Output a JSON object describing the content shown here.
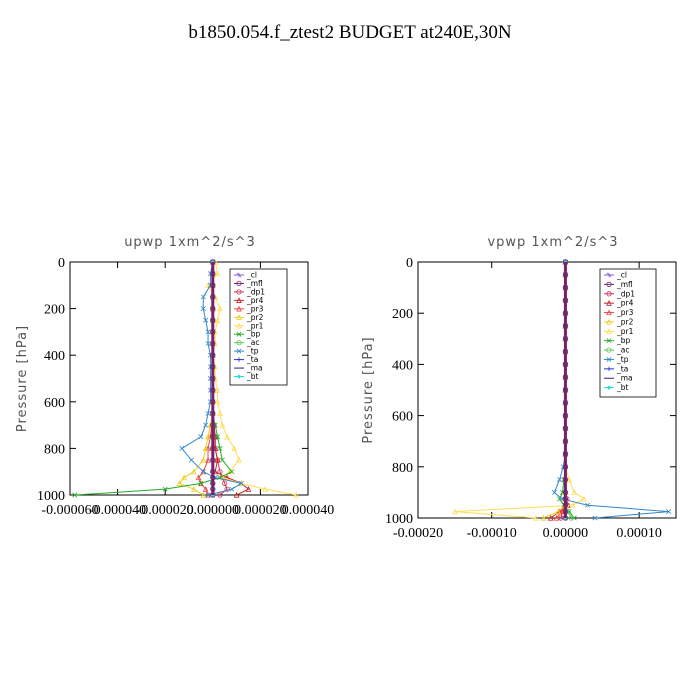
{
  "title": "b1850.054.f_ztest2  BUDGET at240E,30N",
  "legend_names": [
    "_cl",
    "_mfl",
    "_dp1",
    "_pr4",
    "_pr3",
    "_pr2",
    "_pr1",
    "_bp",
    "_ac",
    "_tp",
    "_ta",
    "_ma",
    "_bt"
  ],
  "colors": {
    "_cl": "#8855cc",
    "_mfl": "#7a1f6e",
    "_dp1": "#cc3355",
    "_pr4": "#cc2222",
    "_pr3": "#ee4444",
    "_pr2": "#eecc22",
    "_pr1": "#ffdd55",
    "_bp": "#22aa22",
    "_ac": "#55cc55",
    "_tp": "#3388cc",
    "_ta": "#2233cc",
    "_ma": "#222288",
    "_bt": "#22dddd"
  },
  "chart_data": [
    {
      "type": "line",
      "title": "upwp   1xm^2/s^3",
      "ylabel": "Pressure [hPa]",
      "xlim": [
        -6e-05,
        4e-05
      ],
      "ylim": [
        1000,
        0
      ],
      "x_tick_labels": [
        "-0.000060",
        "-0.000040",
        "-0.000020",
        "0.000000",
        "0.000020",
        "0.000040"
      ],
      "y_tick_labels": [
        "0",
        "200",
        "400",
        "600",
        "800",
        "1000"
      ],
      "legend": "top-right",
      "pressure": [
        0,
        50,
        100,
        150,
        200,
        250,
        300,
        350,
        400,
        450,
        500,
        550,
        600,
        650,
        700,
        750,
        800,
        850,
        900,
        925,
        950,
        975,
        1000
      ],
      "series": [
        {
          "name": "_cl",
          "values": [
            0,
            0,
            0,
            0,
            0,
            0,
            0,
            0,
            0,
            0,
            0,
            0,
            0,
            0,
            0,
            0,
            0,
            0,
            0,
            0,
            0,
            0,
            0
          ]
        },
        {
          "name": "_mfl",
          "values": [
            0,
            0,
            0,
            0,
            0,
            0,
            0,
            0,
            0,
            0,
            0,
            0,
            0,
            0,
            0,
            0,
            0,
            0,
            0,
            0,
            0,
            0,
            0
          ]
        },
        {
          "name": "_dp1",
          "values": [
            0,
            0,
            0,
            0,
            0,
            0,
            0,
            0,
            0,
            0,
            0,
            0,
            0,
            0,
            5e-07,
            1e-06,
            1e-06,
            2e-06,
            3e-06,
            4e-06,
            5e-06,
            6e-06,
            3e-06
          ]
        },
        {
          "name": "_pr4",
          "values": [
            0,
            0,
            0,
            0,
            0,
            0,
            0,
            0,
            0,
            0,
            0,
            0,
            0,
            0,
            5e-07,
            1e-06,
            1e-06,
            2e-06,
            1e-06,
            6e-06,
            1.2e-05,
            1.5e-05,
            1e-05
          ]
        },
        {
          "name": "_pr3",
          "values": [
            0,
            0,
            0,
            0,
            0,
            0,
            0,
            0,
            0,
            0,
            0,
            0,
            0,
            0,
            -5e-07,
            -1e-06,
            -2e-06,
            -2e-06,
            -4e-06,
            -6e-06,
            -5e-06,
            -3e-06,
            -2e-06
          ]
        },
        {
          "name": "_pr2",
          "values": [
            0,
            0,
            0,
            0,
            0,
            0,
            0,
            0,
            0,
            0,
            0,
            0,
            0,
            0,
            -1e-06,
            -2e-06,
            -3e-06,
            -4e-06,
            -8e-06,
            -1.2e-05,
            -1.4e-05,
            -8e-06,
            -4e-06
          ]
        },
        {
          "name": "_pr1",
          "values": [
            1e-06,
            2e-06,
            -2e-06,
            1e-06,
            3e-06,
            2e-06,
            1e-06,
            1e-06,
            0,
            1e-06,
            1e-06,
            2e-06,
            2e-06,
            3e-06,
            4e-06,
            6e-06,
            9e-06,
            1.1e-05,
            7e-06,
            4e-06,
            1.2e-05,
            2.2e-05,
            3.5e-05
          ]
        },
        {
          "name": "_bp",
          "values": [
            0,
            0,
            0,
            0,
            0,
            0,
            0,
            0,
            0,
            0,
            0,
            0,
            0,
            0,
            1e-06,
            2e-06,
            3e-06,
            4e-06,
            8e-06,
            3e-06,
            -5e-06,
            -2e-05,
            -5.8e-05
          ]
        },
        {
          "name": "_ac",
          "values": [
            0,
            0,
            0,
            0,
            0,
            0,
            0,
            0,
            0,
            0,
            0,
            0,
            0,
            0,
            0,
            0,
            0,
            0,
            0,
            0,
            0,
            0,
            0
          ]
        },
        {
          "name": "_tp",
          "values": [
            0,
            -1e-06,
            -1e-06,
            -4e-06,
            -4e-06,
            -3e-06,
            -2e-06,
            -2e-06,
            -1e-06,
            -1e-06,
            -1e-06,
            -1e-06,
            -1e-06,
            -2e-06,
            -3e-06,
            -5e-06,
            -1.3e-05,
            -9e-06,
            -4e-06,
            1e-06,
            1.2e-05,
            8e-06,
            -2e-06
          ]
        },
        {
          "name": "_ta",
          "values": [
            0,
            0,
            0,
            0,
            0,
            0,
            0,
            0,
            0,
            0,
            0,
            0,
            0,
            0,
            0,
            0,
            0,
            0,
            0,
            0,
            0,
            0,
            0
          ]
        },
        {
          "name": "_ma",
          "values": [
            0,
            0,
            0,
            0,
            0,
            0,
            0,
            0,
            0,
            0,
            0,
            0,
            0,
            0,
            0,
            0,
            0,
            0,
            0,
            0,
            0,
            0,
            0
          ]
        },
        {
          "name": "_bt",
          "values": [
            0,
            0,
            0,
            0,
            0,
            0,
            0,
            0,
            0,
            0,
            0,
            0,
            0,
            0,
            0,
            0,
            0,
            0,
            0,
            0,
            0,
            0,
            0
          ]
        }
      ]
    },
    {
      "type": "line",
      "title": "vpwp   1xm^2/s^3",
      "ylabel": "Pressure [hPa]",
      "xlim": [
        -0.0002,
        0.00015
      ],
      "ylim": [
        1000,
        0
      ],
      "x_tick_labels": [
        "-0.00020",
        "-0.00010",
        "0.00000",
        "0.00010"
      ],
      "y_tick_labels": [
        "0",
        "200",
        "400",
        "600",
        "800",
        "1000"
      ],
      "legend": "top-right",
      "pressure": [
        0,
        50,
        100,
        150,
        200,
        250,
        300,
        350,
        400,
        450,
        500,
        550,
        600,
        650,
        700,
        750,
        800,
        850,
        900,
        925,
        950,
        975,
        1000
      ],
      "series": [
        {
          "name": "_cl",
          "values": [
            0,
            0,
            0,
            0,
            0,
            0,
            0,
            0,
            0,
            0,
            0,
            0,
            0,
            0,
            0,
            0,
            0,
            0,
            0,
            0,
            0,
            0,
            0
          ]
        },
        {
          "name": "_mfl",
          "values": [
            0,
            0,
            0,
            0,
            0,
            0,
            0,
            0,
            0,
            0,
            0,
            0,
            0,
            0,
            0,
            0,
            0,
            0,
            0,
            0,
            0,
            0,
            0
          ]
        },
        {
          "name": "_dp1",
          "values": [
            0,
            0,
            0,
            0,
            0,
            0,
            0,
            0,
            0,
            0,
            0,
            0,
            0,
            0,
            0,
            0,
            0,
            0,
            0,
            2e-06,
            3e-06,
            -4e-06,
            -6e-06
          ]
        },
        {
          "name": "_pr4",
          "values": [
            0,
            0,
            0,
            0,
            0,
            0,
            0,
            0,
            0,
            0,
            0,
            0,
            0,
            0,
            0,
            0,
            0,
            0,
            0,
            1e-06,
            3e-06,
            -8e-06,
            -2e-05
          ]
        },
        {
          "name": "_pr3",
          "values": [
            0,
            0,
            0,
            0,
            0,
            0,
            0,
            0,
            0,
            0,
            0,
            0,
            0,
            0,
            0,
            0,
            0,
            0,
            0,
            0,
            0,
            -5e-06,
            -1.2e-05
          ]
        },
        {
          "name": "_pr2",
          "values": [
            0,
            0,
            0,
            0,
            0,
            0,
            0,
            0,
            0,
            0,
            0,
            0,
            0,
            0,
            0,
            0,
            0,
            0,
            0,
            0,
            0,
            -1e-05,
            -3e-05
          ]
        },
        {
          "name": "_pr1",
          "values": [
            0,
            0,
            0,
            0,
            0,
            0,
            0,
            0,
            0,
            0,
            0,
            0,
            0,
            0,
            0,
            0,
            0,
            5e-06,
            1.2e-05,
            2.5e-05,
            1e-05,
            -0.00015,
            -4e-05
          ]
        },
        {
          "name": "_bp",
          "values": [
            0,
            0,
            0,
            0,
            0,
            0,
            0,
            0,
            0,
            0,
            0,
            0,
            0,
            0,
            0,
            0,
            0,
            -2e-06,
            -4e-06,
            -8e-06,
            -2e-06,
            5e-06,
            1.2e-05
          ]
        },
        {
          "name": "_ac",
          "values": [
            0,
            0,
            0,
            0,
            0,
            0,
            0,
            0,
            0,
            0,
            0,
            0,
            0,
            0,
            0,
            0,
            0,
            0,
            0,
            0,
            0,
            4e-06,
            8e-06
          ]
        },
        {
          "name": "_tp",
          "values": [
            0,
            0,
            0,
            0,
            0,
            0,
            0,
            0,
            0,
            0,
            0,
            0,
            0,
            0,
            0,
            0,
            -3e-06,
            -8e-06,
            -1.5e-05,
            -5e-06,
            3e-05,
            0.00014,
            4e-05
          ]
        },
        {
          "name": "_ta",
          "values": [
            0,
            0,
            0,
            0,
            0,
            0,
            0,
            0,
            0,
            0,
            0,
            0,
            0,
            0,
            0,
            0,
            0,
            0,
            0,
            0,
            0,
            0,
            0
          ]
        },
        {
          "name": "_ma",
          "values": [
            0,
            0,
            0,
            0,
            0,
            0,
            0,
            0,
            0,
            0,
            0,
            0,
            0,
            0,
            0,
            0,
            0,
            0,
            0,
            0,
            0,
            0,
            0
          ]
        },
        {
          "name": "_bt",
          "values": [
            0,
            0,
            0,
            0,
            0,
            0,
            0,
            0,
            0,
            0,
            0,
            0,
            0,
            0,
            0,
            0,
            0,
            0,
            0,
            0,
            0,
            0,
            0
          ]
        }
      ]
    }
  ]
}
